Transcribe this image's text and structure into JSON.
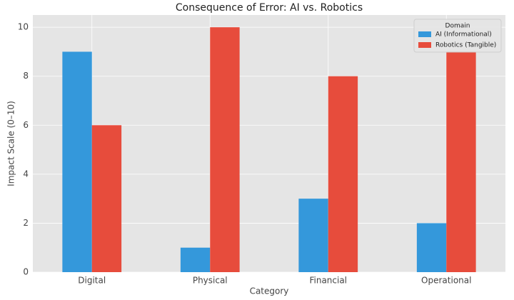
{
  "chart_data": {
    "type": "bar",
    "title": "Consequence of Error: AI vs. Robotics",
    "x_label": "Category",
    "y_label": "Impact Scale (0–10)",
    "categories": [
      "Digital",
      "Physical",
      "Financial",
      "Operational"
    ],
    "series": [
      {
        "name": "AI (Informational)",
        "color": "#3498db",
        "values": [
          9,
          1,
          3,
          2
        ]
      },
      {
        "name": "Robotics (Tangible)",
        "color": "#e74c3c",
        "values": [
          6,
          10,
          8,
          9
        ]
      }
    ],
    "ylim": [
      0,
      10.5
    ],
    "yticks": [
      0,
      2,
      4,
      6,
      8,
      10
    ],
    "grid": true,
    "legend_title": "Domain",
    "legend_position": "upper right"
  }
}
